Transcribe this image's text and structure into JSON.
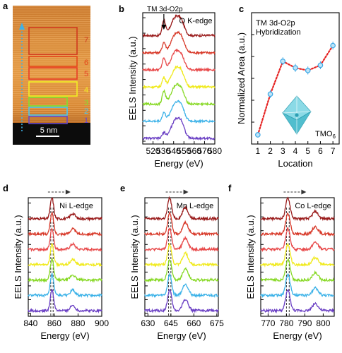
{
  "figure": {
    "panels": [
      {
        "letter": "a",
        "label_color": "#000000"
      },
      {
        "letter": "b",
        "label_color": "#000000"
      },
      {
        "letter": "c",
        "label_color": "#000000"
      },
      {
        "letter": "d",
        "label_color": "#000000"
      },
      {
        "letter": "e",
        "label_color": "#000000"
      },
      {
        "letter": "f",
        "label_color": "#000000"
      }
    ]
  },
  "micrograph": {
    "scale_bar_label": "5 nm",
    "regions": [
      {
        "label": "7",
        "color": "#d03a1e"
      },
      {
        "label": "6",
        "color": "#e4471a"
      },
      {
        "label": "5",
        "color": "#e83e27"
      },
      {
        "label": "4",
        "color": "#f2ee24"
      },
      {
        "label": "3",
        "color": "#7fe22f"
      },
      {
        "label": "2",
        "color": "#49c6ee"
      },
      {
        "label": "1",
        "color": "#6a48c9"
      }
    ],
    "arrow_color": "#3fb0e6"
  },
  "chart_data": [
    {
      "panel": "b",
      "type": "line",
      "title": "O K-edge",
      "annotation": "TM 3d-O2p",
      "xlabel": "Energy (eV)",
      "ylabel": "EELS Intensity (a.u.)",
      "xlim": [
        510,
        580
      ],
      "xticks": [
        520,
        530,
        540,
        550,
        560,
        570,
        580
      ],
      "peaks": [
        {
          "x": 530.5,
          "width": 1.6
        },
        {
          "x": 542,
          "width": 4.5
        },
        {
          "x": 548,
          "width": 3
        }
      ],
      "series": [
        {
          "location": 7,
          "color": "#9a1c1c",
          "peak_heights": [
            0.85,
            1.0,
            0.45
          ]
        },
        {
          "location": 6,
          "color": "#d83a2a",
          "peak_heights": [
            0.55,
            1.0,
            0.5
          ]
        },
        {
          "location": 5,
          "color": "#e8494a",
          "peak_heights": [
            0.6,
            1.0,
            0.45
          ]
        },
        {
          "location": 4,
          "color": "#f0ea1c",
          "peak_heights": [
            0.5,
            1.0,
            0.5
          ]
        },
        {
          "location": 3,
          "color": "#86d823",
          "peak_heights": [
            0.7,
            1.0,
            0.45
          ]
        },
        {
          "location": 2,
          "color": "#3cb2e8",
          "peak_heights": [
            0.45,
            1.0,
            0.5
          ]
        },
        {
          "location": 1,
          "color": "#6a3fc4",
          "peak_heights": [
            0.3,
            1.0,
            0.55
          ]
        }
      ]
    },
    {
      "panel": "c",
      "type": "scatter",
      "title": "TM 3d-O2p Hybridization",
      "inset_label": "TMO",
      "inset_label_sub": "6",
      "xlabel": "Location",
      "ylabel": "Normalized Area (a.u.)",
      "x": [
        1,
        2,
        3,
        4,
        5,
        6,
        7
      ],
      "xlim": [
        0.5,
        7.5
      ],
      "ylim": [
        0,
        1
      ],
      "values": [
        0.07,
        0.38,
        0.63,
        0.58,
        0.56,
        0.6,
        0.75
      ],
      "errors": [
        0.02,
        0.03,
        0.03,
        0.03,
        0.03,
        0.03,
        0.03
      ],
      "marker_color": "#3ca8e6",
      "trend_color": "#e52222"
    },
    {
      "panel": "d",
      "type": "line",
      "title": "Ni L-edge",
      "xlabel": "Energy (eV)",
      "ylabel": "EELS Intensity (a.u.)",
      "xlim": [
        838,
        900
      ],
      "xticks": [
        840,
        860,
        880,
        900
      ],
      "reference_lines": [
        857,
        859
      ],
      "peaks": [
        {
          "x": 858,
          "width": 1.4
        },
        {
          "x": 875.5,
          "width": 2
        }
      ],
      "peak_heights": [
        1.0,
        0.25
      ],
      "series": [
        {
          "location": 7,
          "color": "#9a1c1c"
        },
        {
          "location": 6,
          "color": "#d83a2a"
        },
        {
          "location": 5,
          "color": "#e8494a"
        },
        {
          "location": 4,
          "color": "#f0ea1c"
        },
        {
          "location": 3,
          "color": "#86d823"
        },
        {
          "location": 2,
          "color": "#3cb2e8"
        },
        {
          "location": 1,
          "color": "#6a3fc4"
        }
      ]
    },
    {
      "panel": "e",
      "type": "line",
      "title": "Mn L-edge",
      "xlabel": "Energy (eV)",
      "ylabel": "EELS Intensity (a.u.)",
      "xlim": [
        628,
        676
      ],
      "xticks": [
        630,
        645,
        660,
        675
      ],
      "reference_lines": [
        643.5,
        645
      ],
      "peaks": [
        {
          "x": 644.2,
          "width": 1.3
        },
        {
          "x": 654.5,
          "width": 1.8
        }
      ],
      "peak_heights": [
        1.0,
        0.55
      ],
      "series": [
        {
          "location": 7,
          "color": "#9a1c1c"
        },
        {
          "location": 6,
          "color": "#d83a2a"
        },
        {
          "location": 5,
          "color": "#e8494a"
        },
        {
          "location": 4,
          "color": "#f0ea1c"
        },
        {
          "location": 3,
          "color": "#86d823"
        },
        {
          "location": 2,
          "color": "#3cb2e8"
        },
        {
          "location": 1,
          "color": "#6a3fc4"
        }
      ]
    },
    {
      "panel": "f",
      "type": "line",
      "title": "Co L-edge",
      "xlabel": "Energy (eV)",
      "ylabel": "EELS Intensity (a.u.)",
      "xlim": [
        766,
        806
      ],
      "xticks": [
        770,
        780,
        790,
        800
      ],
      "reference_lines": [
        780,
        781.5
      ],
      "peaks": [
        {
          "x": 780.8,
          "width": 1.2
        },
        {
          "x": 795.7,
          "width": 1.5
        }
      ],
      "peak_heights": [
        1.0,
        0.35
      ],
      "series": [
        {
          "location": 7,
          "color": "#9a1c1c"
        },
        {
          "location": 6,
          "color": "#d83a2a"
        },
        {
          "location": 5,
          "color": "#e8494a"
        },
        {
          "location": 4,
          "color": "#f0ea1c"
        },
        {
          "location": 3,
          "color": "#86d823"
        },
        {
          "location": 2,
          "color": "#3cb2e8"
        },
        {
          "location": 1,
          "color": "#6a3fc4"
        }
      ]
    }
  ]
}
